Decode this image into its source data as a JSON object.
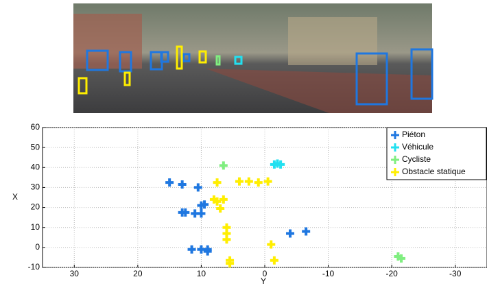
{
  "chart_data": {
    "type": "scatter",
    "x_label": "Y",
    "y_label": "X",
    "xlim": [
      35,
      -35
    ],
    "ylim": [
      -10,
      60
    ],
    "xticks": [
      30,
      20,
      10,
      0,
      -10,
      -20,
      -30
    ],
    "yticks": [
      -10,
      0,
      10,
      20,
      30,
      40,
      50,
      60
    ],
    "grid": true,
    "legend": "upper right",
    "series": [
      {
        "name": "Piéton",
        "color": "#1f77e0",
        "x": [
          15,
          13,
          10.5,
          13,
          12.5,
          11,
          10,
          10,
          9.5,
          11.5,
          10,
          9,
          9,
          -4,
          -6.5
        ],
        "y": [
          32.5,
          31.5,
          30,
          17.5,
          17.5,
          17,
          17,
          21,
          21.5,
          -1,
          -1,
          -1,
          -2,
          7,
          8
        ]
      },
      {
        "name": "Véhicule",
        "color": "#22e0f0",
        "x": [
          -2,
          -2.5,
          -1.5
        ],
        "y": [
          42,
          41.5,
          41.5
        ]
      },
      {
        "name": "Cycliste",
        "color": "#80ee80",
        "x": [
          6.5,
          -21,
          -21.5
        ],
        "y": [
          41,
          -4.5,
          -5.5
        ]
      },
      {
        "name": "Obstacle statique",
        "color": "#ffee00",
        "x": [
          7.5,
          -0.5,
          1,
          2.5,
          4,
          8,
          7.5,
          6.5,
          7,
          6,
          6,
          6,
          5.5,
          5.5,
          -1,
          -1.5
        ],
        "y": [
          32.5,
          33,
          32.5,
          33,
          33,
          24,
          23,
          24,
          19.5,
          10,
          7,
          4,
          -6.5,
          -8,
          1.5,
          -6.5
        ]
      }
    ]
  }
}
